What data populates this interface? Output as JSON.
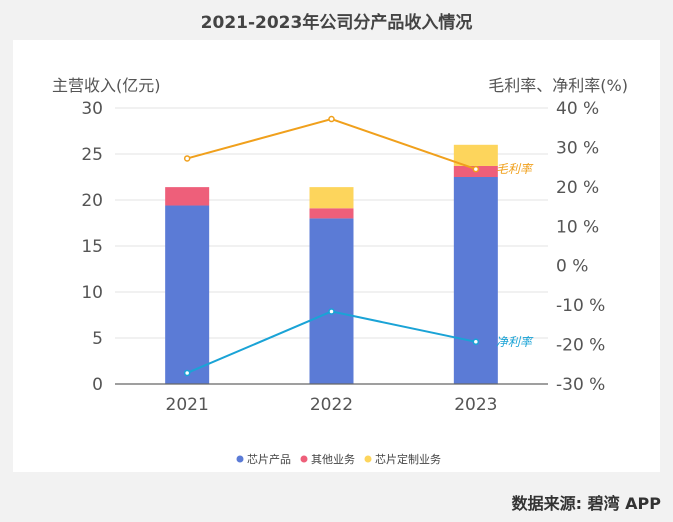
{
  "title": "2021-2023年公司分产品收入情况",
  "source": "数据来源: 碧湾 APP",
  "chart_data": {
    "type": "bar",
    "categories": [
      "2021",
      "2022",
      "2023"
    ],
    "ylabel_left": "主营收入(亿元)",
    "ylabel_right": "毛利率、净利率(%)",
    "ylim_left": [
      0,
      30
    ],
    "yticks_left": [
      "0",
      "5",
      "10",
      "15",
      "20",
      "25",
      "30"
    ],
    "ylim_right": [
      -30,
      40
    ],
    "yticks_right": [
      "-30 %",
      "-20 %",
      "-10 %",
      "0 %",
      "10 %",
      "20 %",
      "30 %",
      "40 %"
    ],
    "grid": true,
    "legend_placement": "bottom",
    "stacked_series": [
      {
        "name": "芯片产品",
        "color": "#5b7bd6",
        "values": [
          19.4,
          18.0,
          22.5
        ]
      },
      {
        "name": "其他业务",
        "color": "#ee5f7a",
        "values": [
          2.0,
          1.1,
          1.2
        ]
      },
      {
        "name": "芯片定制业务",
        "color": "#fdd55c",
        "values": [
          0,
          2.3,
          2.3
        ]
      }
    ],
    "line_series": [
      {
        "name": "毛利率",
        "color": "#f0a01c",
        "values": [
          27.2,
          37.2,
          24.5
        ]
      },
      {
        "name": "净利率",
        "color": "#1aa3d6",
        "values": [
          -27.2,
          -11.6,
          -19.3
        ]
      }
    ]
  }
}
